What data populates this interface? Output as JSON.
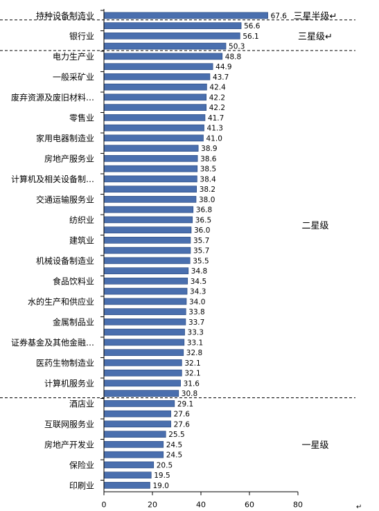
{
  "chart_data": {
    "type": "bar",
    "orientation": "horizontal",
    "title": "",
    "xlabel": "",
    "ylabel": "",
    "xlim": [
      0,
      80
    ],
    "xticks": [
      "0",
      "20",
      "40",
      "60",
      "80"
    ],
    "grid": false,
    "legend": "none",
    "bar_color": "#4a6fae",
    "values": [
      67.6,
      56.6,
      56.1,
      50.3,
      48.8,
      44.9,
      43.7,
      42.4,
      42.2,
      42.2,
      41.7,
      41.3,
      41.0,
      38.9,
      38.6,
      38.5,
      38.4,
      38.2,
      38.0,
      36.8,
      36.5,
      36.0,
      35.7,
      35.7,
      35.5,
      34.8,
      34.5,
      34.3,
      34.0,
      33.8,
      33.7,
      33.3,
      33.1,
      32.8,
      32.1,
      32.1,
      31.6,
      30.8,
      29.1,
      27.6,
      27.6,
      25.5,
      24.5,
      24.5,
      20.5,
      19.5,
      19.0
    ],
    "value_labels": [
      "67.6",
      "56.6",
      "56.1",
      "50.3",
      "48.8",
      "44.9",
      "43.7",
      "42.4",
      "42.2",
      "42.2",
      "41.7",
      "41.3",
      "41.0",
      "38.9",
      "38.6",
      "38.5",
      "38.4",
      "38.2",
      "38.0",
      "36.8",
      "36.5",
      "36.0",
      "35.7",
      "35.7",
      "35.5",
      "34.8",
      "34.5",
      "34.3",
      "34.0",
      "33.8",
      "33.7",
      "33.3",
      "33.1",
      "32.8",
      "32.1",
      "32.1",
      "31.6",
      "30.8",
      "29.1",
      "27.6",
      "27.6",
      "25.5",
      "24.5",
      "24.5",
      "20.5",
      "19.5",
      "19.0"
    ],
    "category_labels": [
      {
        "bar": 0,
        "text": "持种设备制造业"
      },
      {
        "bar": 2,
        "text": "银行业"
      },
      {
        "bar": 4,
        "text": "电力生产业"
      },
      {
        "bar": 6,
        "text": "一般采矿业"
      },
      {
        "bar": 8,
        "text": "废弃资源及废旧材料…"
      },
      {
        "bar": 10,
        "text": "零售业"
      },
      {
        "bar": 12,
        "text": "家用电器制造业"
      },
      {
        "bar": 14,
        "text": "房地产服务业"
      },
      {
        "bar": 16,
        "text": "计算机及相关设备制…"
      },
      {
        "bar": 18,
        "text": "交通运输服务业"
      },
      {
        "bar": 20,
        "text": "纺织业"
      },
      {
        "bar": 22,
        "text": "建筑业"
      },
      {
        "bar": 24,
        "text": "机械设备制造业"
      },
      {
        "bar": 26,
        "text": "食品饮料业"
      },
      {
        "bar": 28,
        "text": "水的生产和供应业"
      },
      {
        "bar": 30,
        "text": "金属制品业"
      },
      {
        "bar": 32,
        "text": "证券基金及其他金融…"
      },
      {
        "bar": 34,
        "text": "医药生物制造业"
      },
      {
        "bar": 36,
        "text": "计算机服务业"
      },
      {
        "bar": 38,
        "text": "酒店业"
      },
      {
        "bar": 40,
        "text": "互联网服务业"
      },
      {
        "bar": 42,
        "text": "房地产开发业"
      },
      {
        "bar": 44,
        "text": "保险业"
      },
      {
        "bar": 46,
        "text": "印刷业"
      }
    ],
    "tiers": [
      {
        "label": "三星半级↵",
        "first_bar": 0,
        "last_bar": 0
      },
      {
        "label": "三星级↵",
        "first_bar": 1,
        "last_bar": 3
      },
      {
        "label": "二星级",
        "first_bar": 4,
        "last_bar": 37
      },
      {
        "label": "一星级",
        "first_bar": 38,
        "last_bar": 46
      }
    ],
    "corner_mark": "↵"
  }
}
